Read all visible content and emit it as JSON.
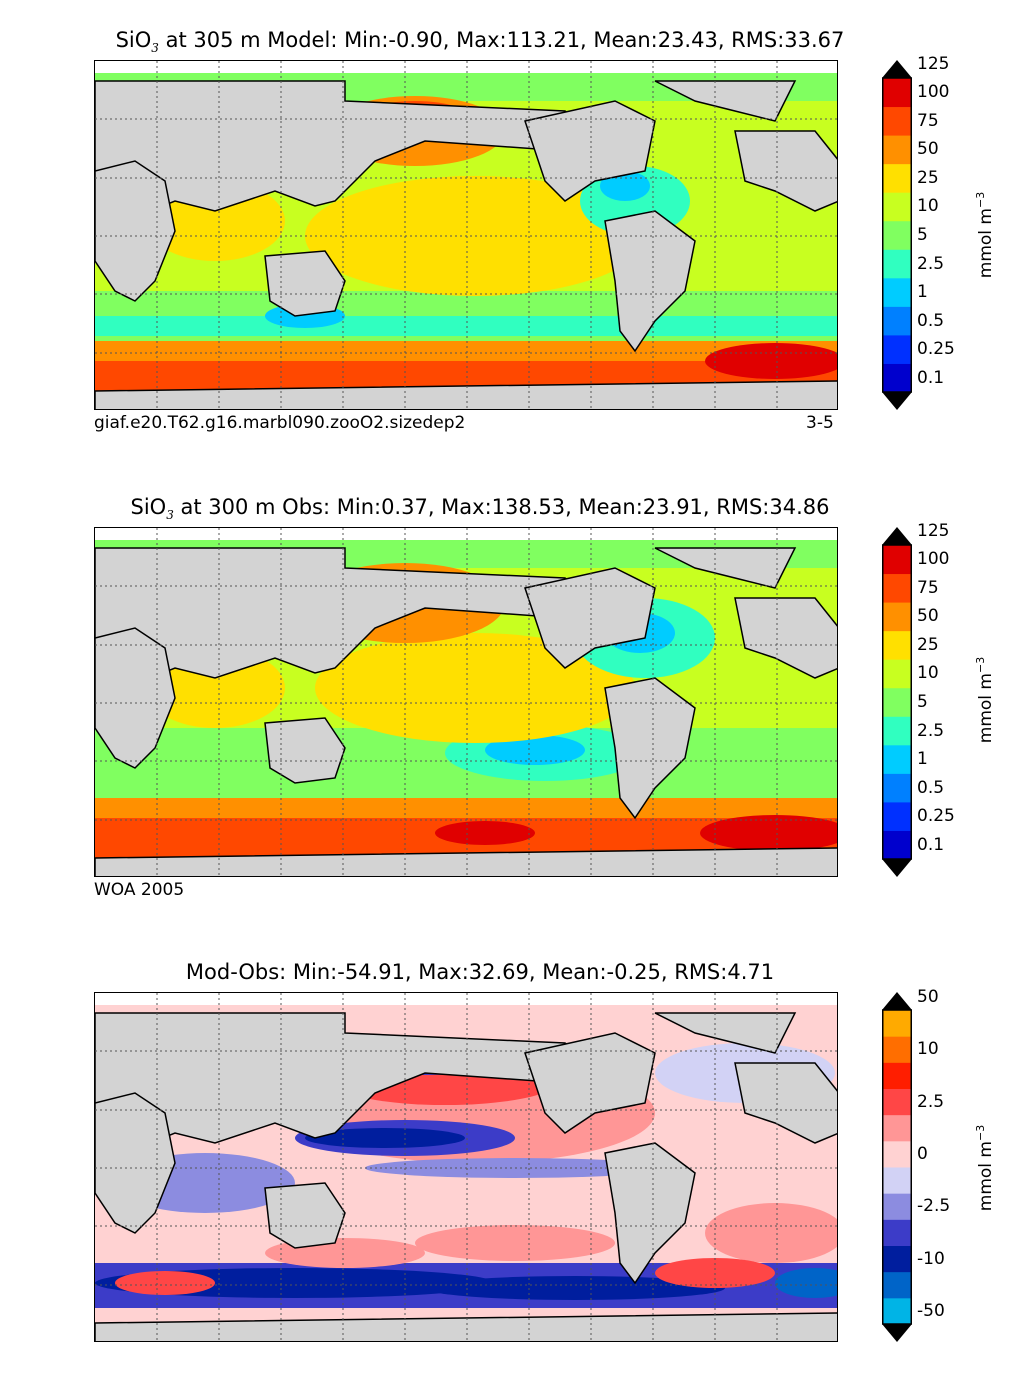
{
  "panels": [
    {
      "title_prefix": "SiO",
      "title_sub": "3",
      "title_rest": " at 305 m Model: Min:-0.90, Max:113.21, Mean:23.43, RMS:33.67",
      "footer_left": "giaf.e20.T62.g16.marbl090.zooO2.sizedep2",
      "footer_right": "3-5",
      "colorbar": {
        "unit": "mmol m",
        "unit_sup": "−3",
        "levels": [
          "0.1",
          "0.25",
          "0.5",
          "1",
          "2.5",
          "5",
          "10",
          "25",
          "50",
          "75",
          "100",
          "125"
        ],
        "colors": [
          "#000080",
          "#0000cd",
          "#0030ff",
          "#0080ff",
          "#00ccff",
          "#30ffc0",
          "#80ff60",
          "#c8ff20",
          "#ffe000",
          "#ff9000",
          "#ff4800",
          "#e00000",
          "#800000"
        ]
      }
    },
    {
      "title_prefix": "SiO",
      "title_sub": "3",
      "title_rest": " at 300 m Obs: Min:0.37, Max:138.53, Mean:23.91, RMS:34.86",
      "footer_left": "WOA 2005",
      "footer_right": "",
      "colorbar": {
        "unit": "mmol m",
        "unit_sup": "−3",
        "levels": [
          "0.1",
          "0.25",
          "0.5",
          "1",
          "2.5",
          "5",
          "10",
          "25",
          "50",
          "75",
          "100",
          "125"
        ],
        "colors": [
          "#000080",
          "#0000cd",
          "#0030ff",
          "#0080ff",
          "#00ccff",
          "#30ffc0",
          "#80ff60",
          "#c8ff20",
          "#ffe000",
          "#ff9000",
          "#ff4800",
          "#e00000",
          "#800000"
        ]
      }
    },
    {
      "title_prefix": "",
      "title_sub": "",
      "title_rest": "Mod-Obs: Min:-54.91, Max:32.69, Mean:-0.25, RMS:4.71",
      "footer_left": "",
      "footer_right": "",
      "colorbar": {
        "unit": "mmol m",
        "unit_sup": "−3",
        "levels": [
          "-50",
          "",
          "-10",
          "",
          "-2.5",
          "",
          "0",
          "",
          "2.5",
          "",
          "10",
          "",
          "50"
        ],
        "colors": [
          "#00ffff",
          "#00b4e6",
          "#0064c8",
          "#001e9e",
          "#3c3cc8",
          "#8c8ce0",
          "#d2d2f5",
          "#ffd2d2",
          "#ff9696",
          "#ff4646",
          "#ff1e00",
          "#ff6e00",
          "#ffaa00",
          "#ffff00"
        ]
      }
    }
  ],
  "map_colors": {
    "land": "#d3d3d3",
    "coast": "#000000",
    "no_data": "#ffffff",
    "grid": "#555555"
  }
}
